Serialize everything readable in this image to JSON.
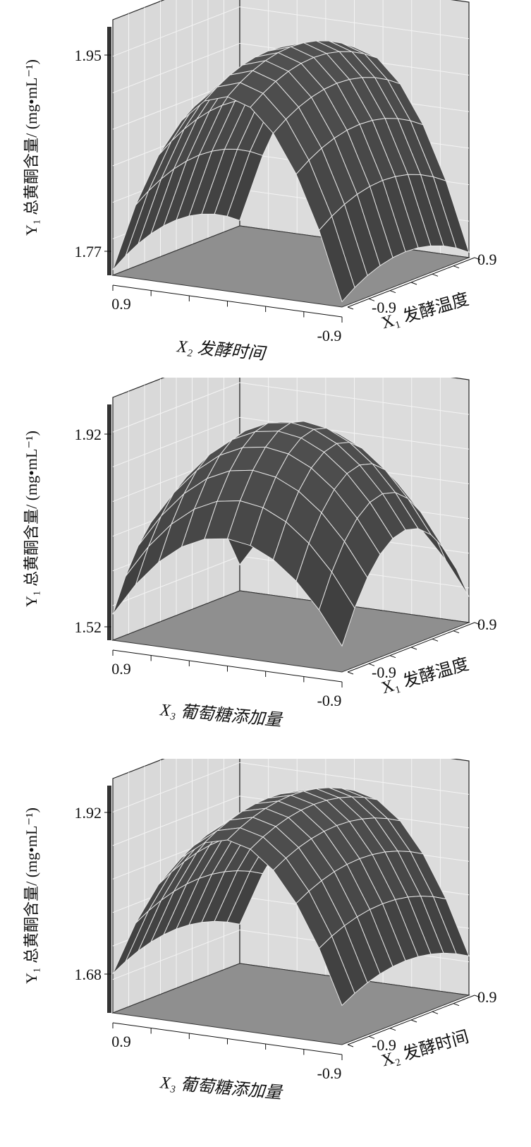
{
  "chart_data": [
    {
      "type": "surface",
      "z_label": "Y₁ 总黄酮含量/ (mg•mL⁻¹)",
      "z_ticks": [
        "1.95",
        "1.77"
      ],
      "zlim": [
        1.77,
        1.95
      ],
      "x_label": "X₂ 发酵时间",
      "x_ticks": [
        "0.9",
        "-0.9"
      ],
      "y_label": "X₁ 发酵温度",
      "y_ticks": [
        "0.9",
        "-0.9"
      ],
      "grid": true,
      "surface": {
        "shape": "ridge",
        "peak": 1.95,
        "low": 1.75,
        "color": "#4a4a4a"
      }
    },
    {
      "type": "surface",
      "z_label": "Y₁ 总黄酮含量/ (mg•mL⁻¹)",
      "z_ticks": [
        "1.92",
        "1.52"
      ],
      "zlim": [
        1.52,
        1.92
      ],
      "x_label": "X₃ 葡萄糖添加量",
      "x_ticks": [
        "0.9",
        "-0.9"
      ],
      "y_label": "X₁ 发酵温度",
      "y_ticks": [
        "0.9",
        "-0.9"
      ],
      "grid": true,
      "surface": {
        "shape": "dome",
        "peak": 1.92,
        "low": 1.55,
        "color": "#4a4a4a"
      }
    },
    {
      "type": "surface",
      "z_label": "Y₁ 总黄酮含量/ (mg•mL⁻¹)",
      "z_ticks": [
        "1.92",
        "1.68"
      ],
      "zlim": [
        1.68,
        1.92
      ],
      "x_label": "X₃ 葡萄糖添加量",
      "x_ticks": [
        "0.9",
        "-0.9"
      ],
      "y_label": "X₂ 发酵时间",
      "y_ticks": [
        "0.9",
        "-0.9"
      ],
      "grid": true,
      "surface": {
        "shape": "ridge",
        "peak": 1.93,
        "low": 1.7,
        "color": "#4a4a4a"
      }
    }
  ]
}
